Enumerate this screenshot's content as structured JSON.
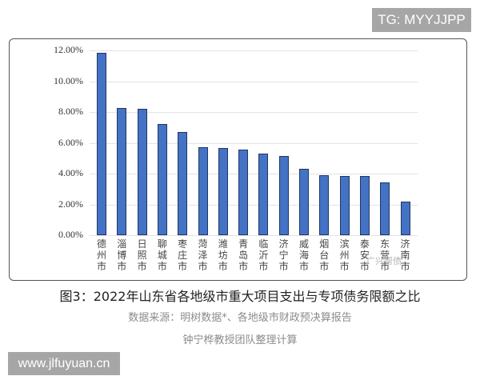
{
  "badges": {
    "top_right": "TG: MYYJJPP",
    "bottom_left": "www.jlfuyuan.cn"
  },
  "captions": {
    "title": "图3：2022年山东省各地级市重大项目支出与专项债务限额之比",
    "source": "数据来源：明树数据*、各地级市财政预决算报告",
    "team": "钟宁桦教授团队整理计算"
  },
  "watermark": "广兴帮债",
  "colors": {
    "bar_fill": "#4472c4",
    "bar_border": "#1f3864",
    "gridline": "#e3e3e3"
  },
  "chart_data": {
    "type": "bar",
    "title": "2022年山东省各地级市重大项目支出与专项债务限额之比",
    "xlabel": "",
    "ylabel": "",
    "ylim": [
      0,
      12
    ],
    "y_ticks": [
      "0.00%",
      "2.00%",
      "4.00%",
      "6.00%",
      "8.00%",
      "10.00%",
      "12.00%"
    ],
    "grid": true,
    "legend": null,
    "categories": [
      "德州市",
      "淄博市",
      "日照市",
      "聊城市",
      "枣庄市",
      "菏泽市",
      "潍坊市",
      "青岛市",
      "临沂市",
      "济宁市",
      "威海市",
      "烟台市",
      "滨州市",
      "泰安市",
      "东营市",
      "济南市"
    ],
    "values": [
      11.85,
      8.25,
      8.2,
      7.2,
      6.7,
      5.7,
      5.65,
      5.55,
      5.3,
      5.15,
      4.3,
      3.9,
      3.85,
      3.85,
      3.45,
      2.2
    ],
    "unit": "%"
  }
}
